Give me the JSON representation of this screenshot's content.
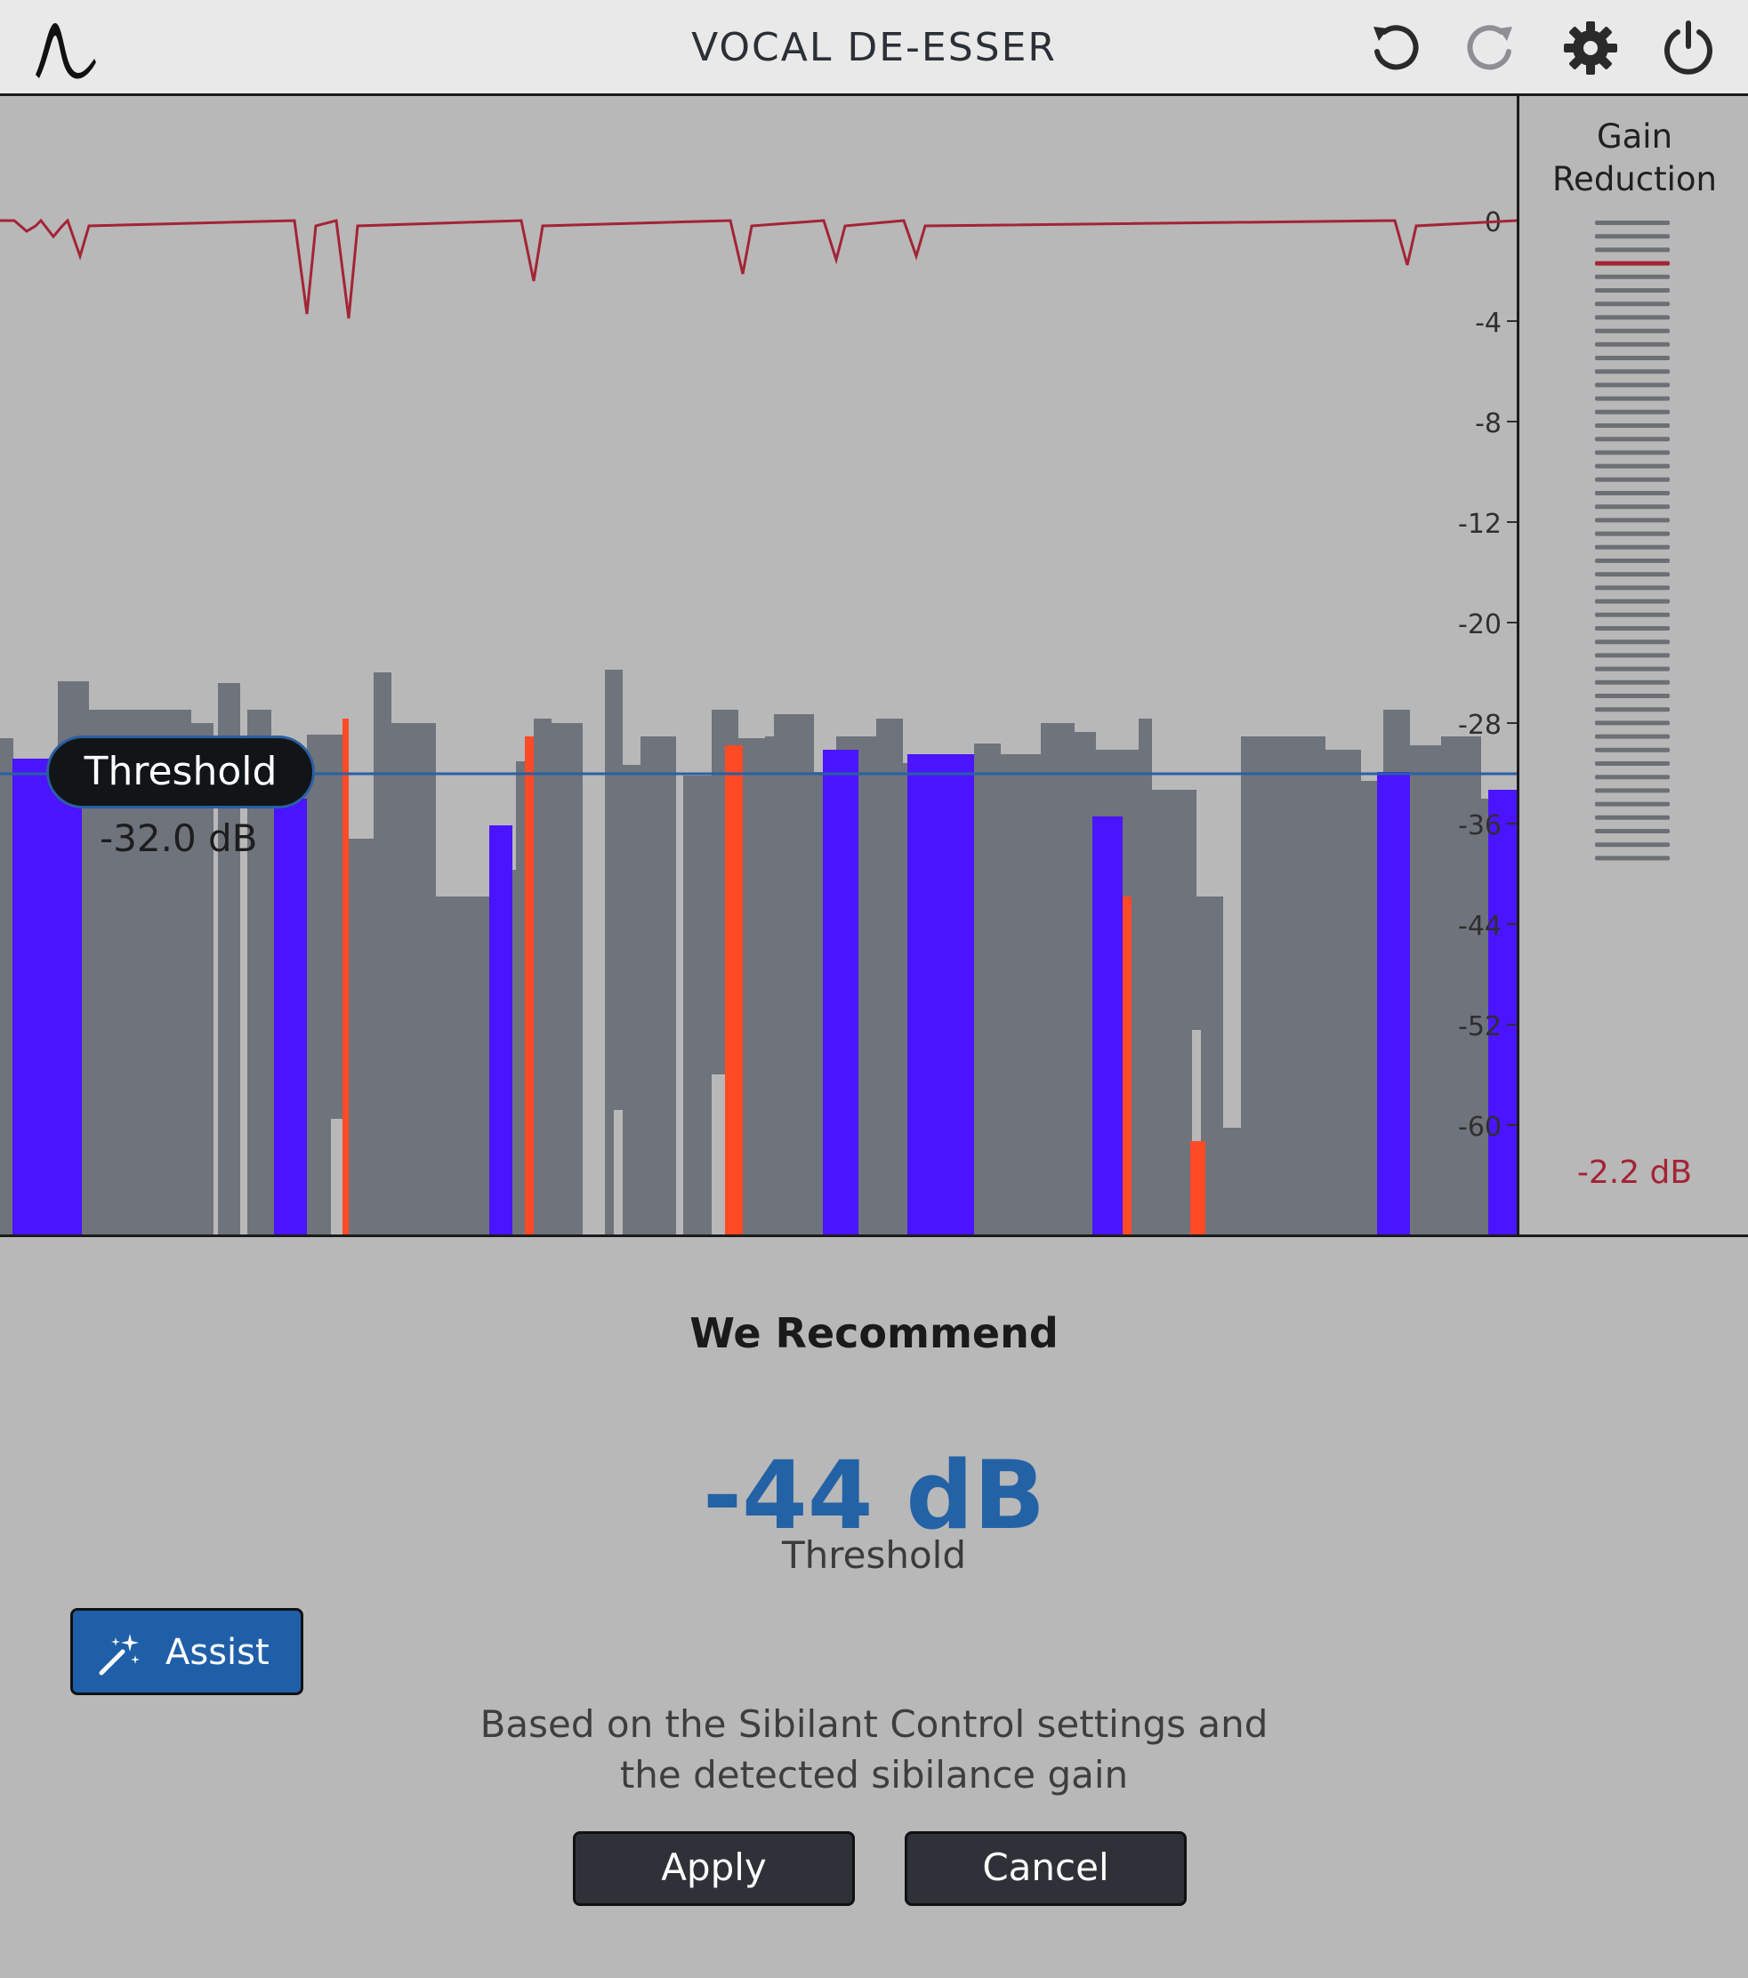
{
  "header": {
    "title": "VOCAL DE-ESSER",
    "icons": [
      "app-logo-icon",
      "undo-icon",
      "redo-icon",
      "gear-icon",
      "power-icon"
    ]
  },
  "meter": {
    "title_line1": "Gain",
    "title_line2": "Reduction",
    "value": "-2.2 dB",
    "scale_labels": [
      "0",
      "-4",
      "-8",
      "-12",
      "-20",
      "-28",
      "-36",
      "-44",
      "-52",
      "-60"
    ],
    "reduction_level_db": -2.2
  },
  "threshold": {
    "label": "Threshold",
    "value": "-32.0 dB",
    "db": -32
  },
  "recommend": {
    "heading": "We Recommend",
    "value": "-44 dB",
    "label": "Threshold",
    "description_line1": "Based on the Sibilant Control settings and",
    "description_line2": "the detected sibilance gain"
  },
  "buttons": {
    "assist": "Assist",
    "apply": "Apply",
    "cancel": "Cancel"
  },
  "colors": {
    "accent": "#2462a6",
    "sibilance": "#4a14ff",
    "over_threshold": "#ff4a26",
    "gain_reduction": "#a32436",
    "waveform": "#6f737b"
  }
}
